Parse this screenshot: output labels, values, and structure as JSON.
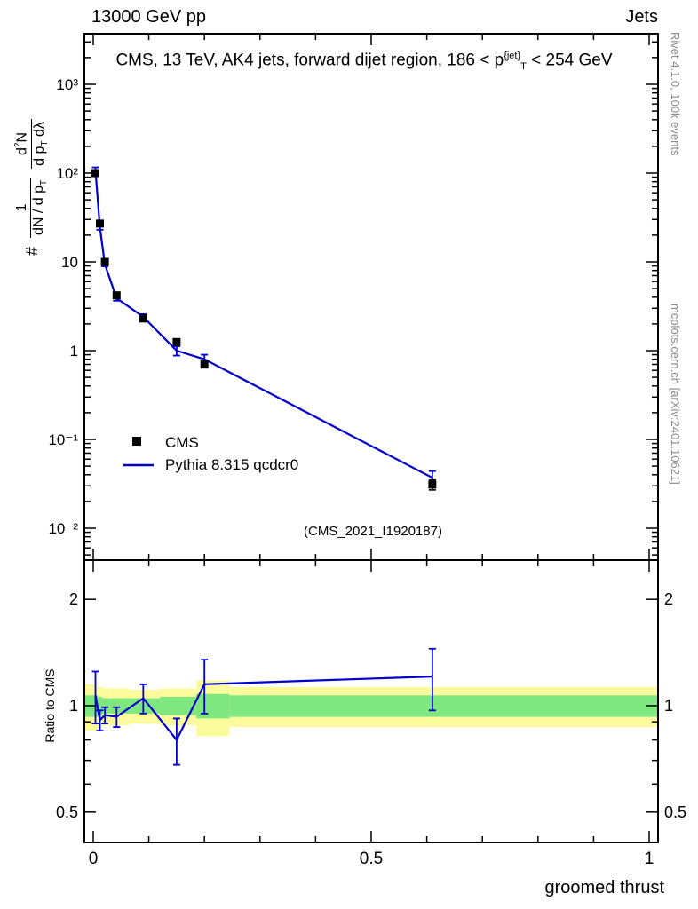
{
  "header": {
    "left": "13000 GeV pp",
    "right": "Jets"
  },
  "title_runs": [
    {
      "t": "CMS, 13 TeV, AK4 jets, forward dijet region, 186 < p"
    },
    {
      "t": "{jet}",
      "sup": true
    },
    {
      "t": "T",
      "sub": true
    },
    {
      "t": " < 254 GeV"
    }
  ],
  "main_panel": {
    "watermark": "(CMS_2021_I1920187)",
    "ylabel": {
      "prefix": "#",
      "frac1_num": "1",
      "frac1_den": [
        {
          "t": "dN / d p"
        },
        {
          "t": "T",
          "sub": true
        }
      ],
      "frac2_num": [
        {
          "t": "d"
        },
        {
          "t": "2",
          "sup": true
        },
        {
          "t": "N"
        }
      ],
      "frac2_den": [
        {
          "t": "d p"
        },
        {
          "t": "T",
          "sub": true
        },
        {
          "t": " dλ"
        }
      ]
    }
  },
  "ratio_panel": {
    "ylabel": "Ratio to CMS"
  },
  "side_notes": {
    "top_right": "Rivet 4.1.0, 100k events",
    "bottom_right": "mcplots.cern.ch [arXiv:2401.10621]"
  },
  "legend": {
    "items": [
      {
        "label": "CMS",
        "marker": "square",
        "color": "#000000"
      },
      {
        "label": "Pythia 8.315 qcdcr0",
        "marker": "line",
        "color": "#0000cc"
      }
    ]
  },
  "xaxis": {
    "title": "groomed thrust"
  },
  "chart_data": {
    "type": "line",
    "title": "CMS, 13 TeV, AK4 jets, forward dijet region, 186 < pT^{jet} < 254 GeV",
    "xlabel": "groomed thrust",
    "ylabel": "1/(dN/dpT) d2N/(dpT dLambda)",
    "x_range": [
      0,
      1
    ],
    "y_scale": "log",
    "y_range": [
      0.0044,
      3700
    ],
    "grid": false,
    "legend_position": "left-middle",
    "xticks": [
      {
        "v": 0,
        "label": "0"
      },
      {
        "v": 0.5,
        "label": "0.5"
      },
      {
        "v": 1,
        "label": "1"
      }
    ],
    "xminor": [
      0.1,
      0.2,
      0.3,
      0.4,
      0.6,
      0.7,
      0.8,
      0.9
    ],
    "yticks": [
      {
        "v": 1000,
        "label": "10³"
      },
      {
        "v": 100,
        "label": "10²"
      },
      {
        "v": 10,
        "label": "10"
      },
      {
        "v": 1,
        "label": "1"
      },
      {
        "v": 0.1,
        "label": "10⁻¹"
      },
      {
        "v": 0.01,
        "label": "10⁻²"
      }
    ],
    "series": [
      {
        "name": "CMS",
        "style": "points",
        "color": "#000000",
        "points": [
          [
            0.004,
            100,
            7
          ],
          [
            0.012,
            27,
            2
          ],
          [
            0.021,
            10,
            0.7
          ],
          [
            0.042,
            4.2,
            0.3
          ],
          [
            0.09,
            2.3,
            0.15
          ],
          [
            0.15,
            1.25,
            0.1
          ],
          [
            0.2,
            0.7,
            0.06
          ],
          [
            0.61,
            0.031,
            0.004
          ]
        ]
      },
      {
        "name": "Pythia 8.315 qcdcr0",
        "style": "line",
        "color": "#0000cc",
        "points": [
          [
            0.004,
            107,
            9
          ],
          [
            0.012,
            24.5,
            1.5
          ],
          [
            0.021,
            9.4,
            0.5
          ],
          [
            0.042,
            3.9,
            0.25
          ],
          [
            0.09,
            2.4,
            0.18
          ],
          [
            0.15,
            1.0,
            0.12
          ],
          [
            0.2,
            0.8,
            0.1
          ],
          [
            0.61,
            0.037,
            0.007
          ]
        ]
      }
    ],
    "ratio": {
      "label": "Ratio to CMS",
      "y_scale": "log",
      "y_range": [
        0.41,
        2.6
      ],
      "yticks": [
        {
          "v": 2,
          "label": "2"
        },
        {
          "v": 1,
          "label": "1"
        },
        {
          "v": 0.5,
          "label": "0.5"
        }
      ],
      "yminor": [
        0.6,
        0.7,
        0.8,
        0.9
      ],
      "line_color": "#0000cc",
      "points": [
        [
          0.004,
          1.07,
          0.18
        ],
        [
          0.012,
          0.91,
          0.06
        ],
        [
          0.021,
          0.94,
          0.05
        ],
        [
          0.042,
          0.93,
          0.06
        ],
        [
          0.09,
          1.05,
          0.1
        ],
        [
          0.15,
          0.8,
          0.12
        ],
        [
          0.2,
          1.15,
          0.2
        ],
        [
          0.61,
          1.21,
          0.24
        ]
      ],
      "band_colors": {
        "outer": "#fbfb9b",
        "inner": "#7fe77f"
      },
      "bands": [
        {
          "x0": 0,
          "x1": 0.008,
          "yellow": [
            0.85,
            1.15
          ],
          "green": [
            0.93,
            1.07
          ]
        },
        {
          "x0": 0.008,
          "x1": 0.016,
          "yellow": [
            0.87,
            1.13
          ],
          "green": [
            0.94,
            1.06
          ]
        },
        {
          "x0": 0.016,
          "x1": 0.03,
          "yellow": [
            0.88,
            1.12
          ],
          "green": [
            0.95,
            1.05
          ]
        },
        {
          "x0": 0.03,
          "x1": 0.065,
          "yellow": [
            0.88,
            1.12
          ],
          "green": [
            0.95,
            1.05
          ]
        },
        {
          "x0": 0.065,
          "x1": 0.12,
          "yellow": [
            0.89,
            1.11
          ],
          "green": [
            0.95,
            1.05
          ]
        },
        {
          "x0": 0.12,
          "x1": 0.185,
          "yellow": [
            0.88,
            1.12
          ],
          "green": [
            0.94,
            1.06
          ]
        },
        {
          "x0": 0.185,
          "x1": 0.245,
          "yellow": [
            0.82,
            1.18
          ],
          "green": [
            0.92,
            1.08
          ]
        },
        {
          "x0": 0.245,
          "x1": 1.0,
          "yellow": [
            0.87,
            1.13
          ],
          "green": [
            0.93,
            1.07
          ]
        }
      ]
    }
  }
}
